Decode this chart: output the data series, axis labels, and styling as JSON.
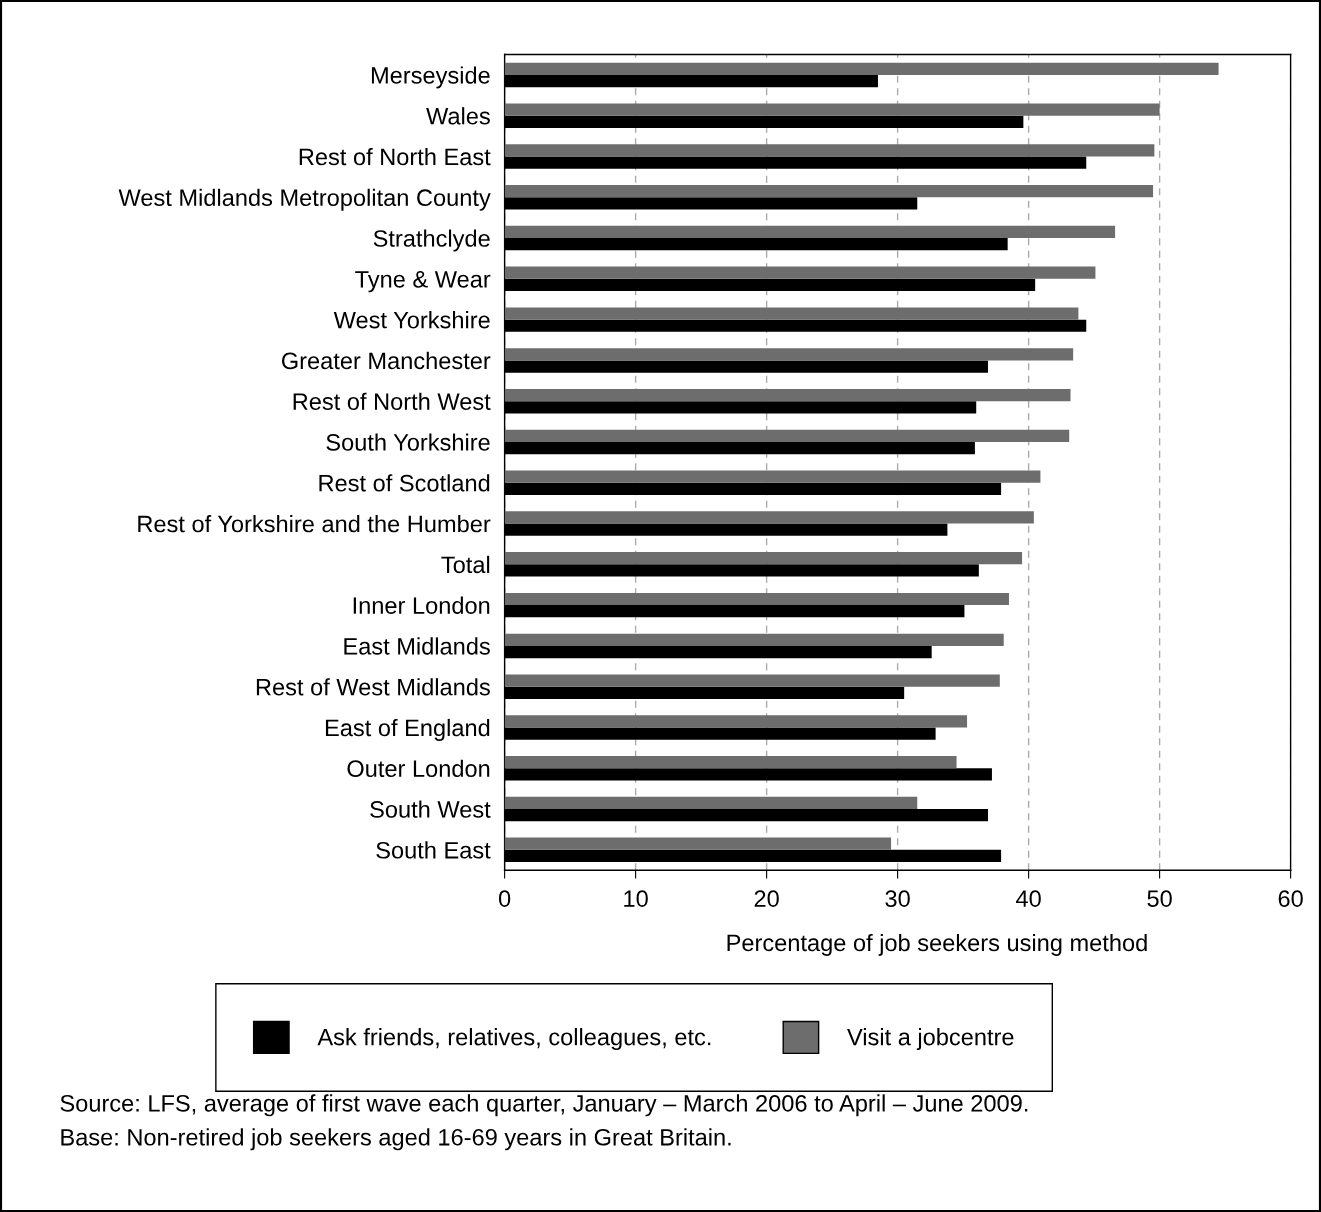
{
  "chart_data": {
    "type": "bar",
    "orientation": "horizontal",
    "xlabel": "Percentage of job seekers using method",
    "categories": [
      "Merseyside",
      "Wales",
      "Rest of North East",
      "West Midlands Metropolitan County",
      "Strathclyde",
      "Tyne & Wear",
      "West Yorkshire",
      "Greater Manchester",
      "Rest of North West",
      "South Yorkshire",
      "Rest of Scotland",
      "Rest of Yorkshire and the Humber",
      "Total",
      "Inner London",
      "East Midlands",
      "Rest of West Midlands",
      "East of England",
      "Outer London",
      "South West",
      "South East"
    ],
    "series": [
      {
        "name": "Ask friends, relatives, colleagues, etc.",
        "color": "#000000",
        "values": [
          28.5,
          39.6,
          44.4,
          31.5,
          38.4,
          40.5,
          44.4,
          36.9,
          36.0,
          35.9,
          37.9,
          33.8,
          36.2,
          35.1,
          32.6,
          30.5,
          32.9,
          37.2,
          36.9,
          37.9
        ]
      },
      {
        "name": "Visit a jobcentre",
        "color": "#6d6d6d",
        "values": [
          54.5,
          50.0,
          49.6,
          49.5,
          46.6,
          45.1,
          43.8,
          43.4,
          43.2,
          43.1,
          40.9,
          40.4,
          39.5,
          38.5,
          38.1,
          37.8,
          35.3,
          34.5,
          31.5,
          29.5
        ]
      }
    ],
    "xlim": [
      0,
      60
    ],
    "xticks": [
      0,
      10,
      20,
      30,
      40,
      50,
      60
    ],
    "grid": "x",
    "legend": "bottom",
    "annotations": [
      "Source: LFS, average of first wave each quarter, January – March 2006 to April – June 2009.",
      "Base: Non-retired job seekers aged 16-69 years in Great Britain."
    ]
  }
}
